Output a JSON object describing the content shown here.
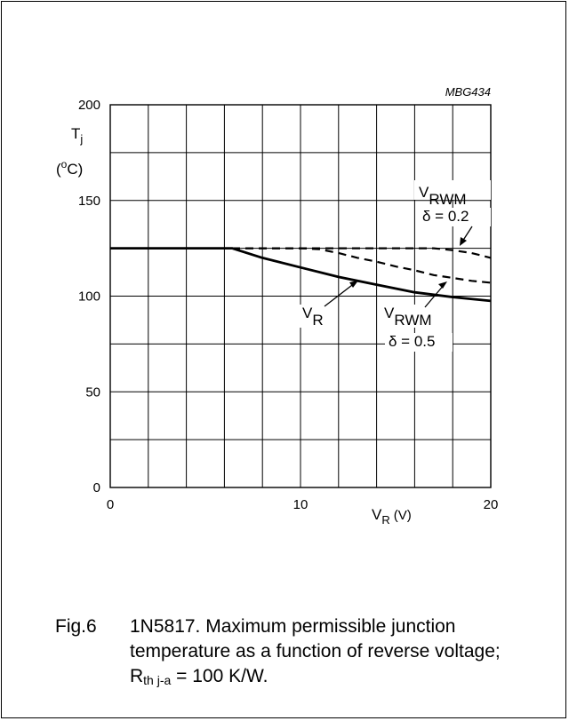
{
  "chart_data": {
    "type": "line",
    "code": "MBG434",
    "ylabel": {
      "symbol": "T",
      "sub": "j",
      "unit_open": "(",
      "unit_sup": "o",
      "unit_rest": "C)"
    },
    "xlabel": {
      "symbol": "V",
      "sub": "R",
      "unit": "(V)"
    },
    "xlim": [
      0,
      20
    ],
    "ylim": [
      0,
      200
    ],
    "x_tick_labels": [
      "0",
      "10",
      "20"
    ],
    "y_tick_labels": [
      "0",
      "50",
      "100",
      "150",
      "200"
    ],
    "grid": true,
    "series": [
      {
        "style": "solid",
        "x": [
          0,
          6.4,
          8,
          10,
          12,
          14,
          16,
          18,
          20
        ],
        "y": [
          125,
          125,
          120,
          115,
          110,
          106,
          102,
          99.5,
          97.5
        ]
      },
      {
        "style": "dashed",
        "x": [
          6.4,
          10,
          11,
          12,
          13,
          14,
          15,
          16,
          17,
          18,
          19,
          20
        ],
        "y": [
          125,
          125,
          124.5,
          122.5,
          120,
          118,
          115.5,
          113.5,
          111,
          109.5,
          108,
          107
        ]
      },
      {
        "style": "dashed",
        "x": [
          6.4,
          17,
          18,
          19,
          20
        ],
        "y": [
          125,
          125,
          124,
          122.5,
          120
        ]
      }
    ],
    "annotations": [
      {
        "symbol": "V",
        "sub": "RWM",
        "value": "δ = 0.2"
      },
      {
        "symbol": "V",
        "sub": "R"
      },
      {
        "symbol": "V",
        "sub": "RWM",
        "value": "δ = 0.5"
      }
    ]
  },
  "caption": {
    "label": "Fig.6",
    "line1": "1N5817. Maximum permissible junction",
    "line2": "temperature as a function of reverse voltage;",
    "line3_symbol": "R",
    "line3_sub": "th j-a",
    "line3_rest": " = 100 K/W."
  }
}
